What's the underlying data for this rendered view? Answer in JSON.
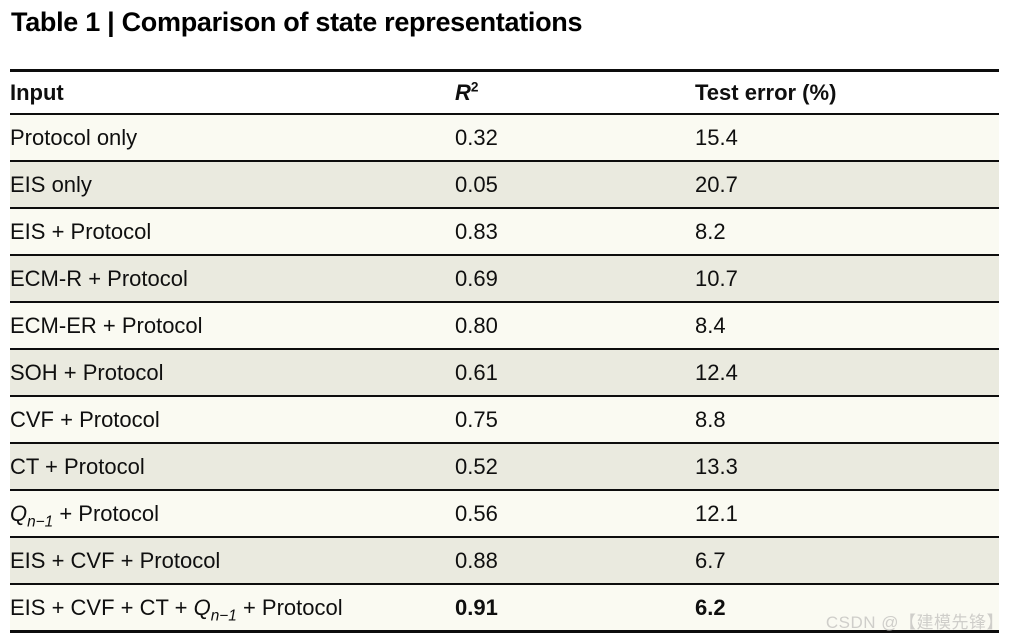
{
  "page_title": "Table 1 | Comparison of state representations",
  "table": {
    "header": {
      "col1": "Input",
      "col2": [
        {
          "t": "R",
          "i": true
        },
        {
          "t": "2",
          "sup": true
        }
      ],
      "col3": "Test error (%)"
    },
    "rows": [
      {
        "input": [
          {
            "t": "Protocol only"
          }
        ],
        "r2": "0.32",
        "test_error": "15.4",
        "bold": false
      },
      {
        "input": [
          {
            "t": "EIS only"
          }
        ],
        "r2": "0.05",
        "test_error": "20.7",
        "bold": false
      },
      {
        "input": [
          {
            "t": "EIS + Protocol"
          }
        ],
        "r2": "0.83",
        "test_error": "8.2",
        "bold": false
      },
      {
        "input": [
          {
            "t": "ECM-R + Protocol"
          }
        ],
        "r2": "0.69",
        "test_error": "10.7",
        "bold": false
      },
      {
        "input": [
          {
            "t": "ECM-ER + Protocol"
          }
        ],
        "r2": "0.80",
        "test_error": "8.4",
        "bold": false
      },
      {
        "input": [
          {
            "t": "SOH + Protocol"
          }
        ],
        "r2": "0.61",
        "test_error": "12.4",
        "bold": false
      },
      {
        "input": [
          {
            "t": "CVF + Protocol"
          }
        ],
        "r2": "0.75",
        "test_error": "8.8",
        "bold": false
      },
      {
        "input": [
          {
            "t": "CT + Protocol"
          }
        ],
        "r2": "0.52",
        "test_error": "13.3",
        "bold": false
      },
      {
        "input": [
          {
            "t": "Q",
            "i": true
          },
          {
            "t": "n−1",
            "sub": true,
            "i": true
          },
          {
            "t": " + Protocol"
          }
        ],
        "r2": "0.56",
        "test_error": "12.1",
        "bold": false
      },
      {
        "input": [
          {
            "t": "EIS + CVF + Protocol"
          }
        ],
        "r2": "0.88",
        "test_error": "6.7",
        "bold": false
      },
      {
        "input": [
          {
            "t": "EIS + CVF + CT + "
          },
          {
            "t": "Q",
            "i": true
          },
          {
            "t": "n−1",
            "sub": true,
            "i": true
          },
          {
            "t": " + Protocol"
          }
        ],
        "r2": "0.91",
        "test_error": "6.2",
        "bold": true
      }
    ]
  },
  "watermark": "CSDN @【建模先锋】",
  "colors": {
    "header_bg": "#d5d3c0",
    "row_odd_bg": "#fafaf2",
    "row_even_bg": "#eaeadf",
    "rule": "#0d0d0d",
    "watermark": "#cfceca"
  }
}
